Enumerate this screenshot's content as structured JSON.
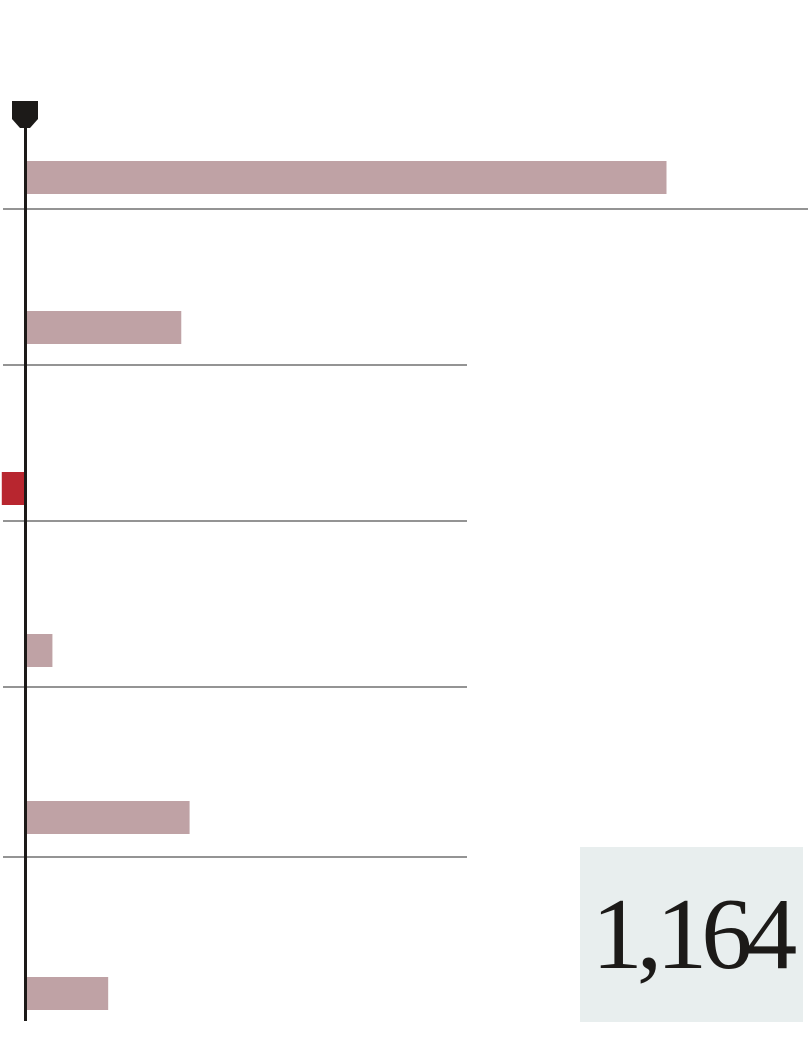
{
  "chart_data": {
    "type": "bar",
    "orientation": "horizontal",
    "values": [
      100,
      24.3,
      -3.7,
      4.2,
      25.6,
      12.9
    ],
    "highlight_index": 2,
    "grid": false,
    "colors": {
      "bar": "#bfa2a5",
      "highlight": "#b8262f",
      "axis": "#1c1a18",
      "separator": "#555555"
    }
  },
  "stat": {
    "value": "1,164",
    "background": "#e8eeee"
  }
}
